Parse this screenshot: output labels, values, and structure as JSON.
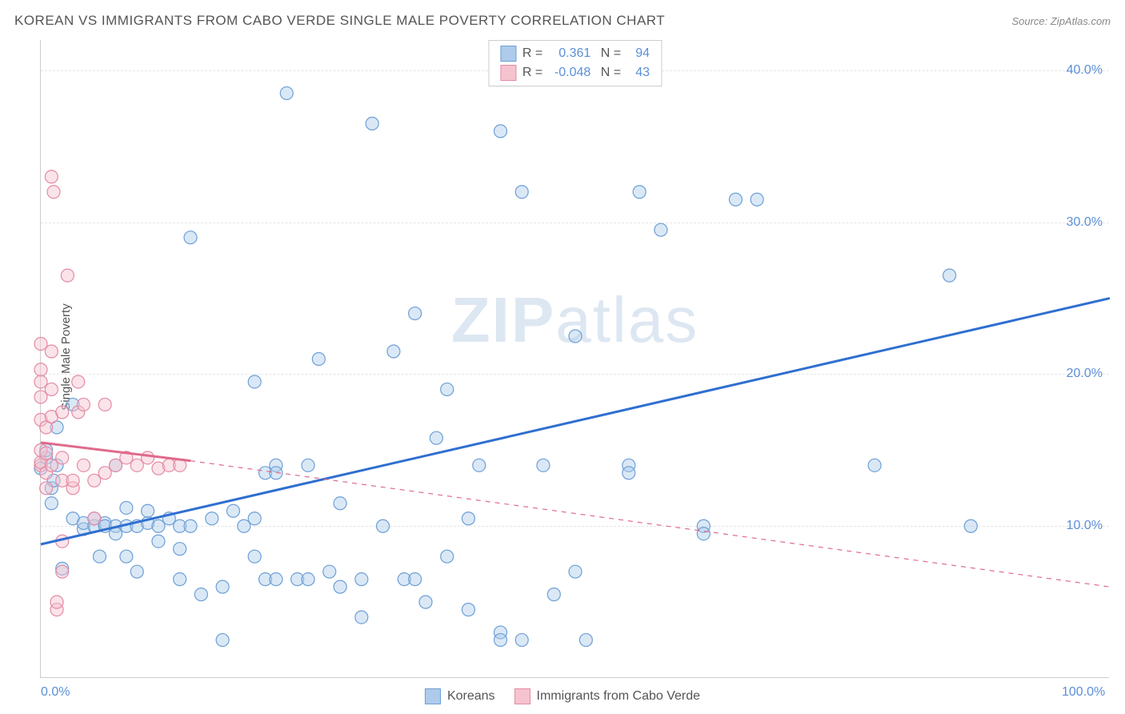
{
  "title": "KOREAN VS IMMIGRANTS FROM CABO VERDE SINGLE MALE POVERTY CORRELATION CHART",
  "source": "Source: ZipAtlas.com",
  "y_axis_title": "Single Male Poverty",
  "watermark_bold": "ZIP",
  "watermark_light": "atlas",
  "chart": {
    "type": "scatter",
    "xlim": [
      0,
      100
    ],
    "ylim": [
      0,
      42
    ],
    "x_ticks": [
      0,
      100
    ],
    "x_tick_labels": [
      "0.0%",
      "100.0%"
    ],
    "y_ticks": [
      10,
      20,
      30,
      40
    ],
    "y_tick_labels": [
      "10.0%",
      "20.0%",
      "30.0%",
      "40.0%"
    ],
    "grid_color": "#e5e5e5",
    "axis_color": "#cccccc",
    "background_color": "#ffffff",
    "tick_label_color": "#5b8fd6",
    "tick_label_fontsize": 16,
    "axis_title_fontsize": 15,
    "marker_radius": 8,
    "marker_stroke_width": 1.2,
    "marker_fill_opacity": 0.45,
    "trend_line_width_solid": 3,
    "trend_line_width_dash": 1.2
  },
  "series": [
    {
      "name": "Koreans",
      "color_fill": "#aecbeb",
      "color_stroke": "#6d9fd6",
      "trend_color": "#2f6fd0",
      "trend_style": "solid",
      "R": "0.361",
      "N": "94",
      "trend": {
        "x1": 0,
        "y1": 8.8,
        "x2": 100,
        "y2": 25.0
      },
      "extrapolation_dash": false,
      "points": [
        [
          0,
          13.8
        ],
        [
          0.5,
          14.5
        ],
        [
          0.5,
          15.0
        ],
        [
          1,
          11.5
        ],
        [
          1,
          12.5
        ],
        [
          1.2,
          13
        ],
        [
          1.5,
          14.0
        ],
        [
          1.5,
          16.5
        ],
        [
          2,
          7.2
        ],
        [
          3,
          18.0
        ],
        [
          3,
          10.5
        ],
        [
          4,
          9.8
        ],
        [
          4,
          10.2
        ],
        [
          5,
          10.0
        ],
        [
          5,
          10.5
        ],
        [
          5.5,
          8.0
        ],
        [
          6,
          10.2
        ],
        [
          6,
          10.0
        ],
        [
          7,
          10.0
        ],
        [
          7,
          9.5
        ],
        [
          7,
          14.0
        ],
        [
          8,
          11.2
        ],
        [
          8,
          8.0
        ],
        [
          8,
          10.0
        ],
        [
          9,
          10.0
        ],
        [
          9,
          7.0
        ],
        [
          10,
          10.2
        ],
        [
          10,
          11.0
        ],
        [
          11,
          9.0
        ],
        [
          11,
          10.0
        ],
        [
          12,
          10.5
        ],
        [
          13,
          10.0
        ],
        [
          13,
          8.5
        ],
        [
          13,
          6.5
        ],
        [
          14,
          29.0
        ],
        [
          14,
          10.0
        ],
        [
          15,
          5.5
        ],
        [
          16,
          10.5
        ],
        [
          17,
          6.0
        ],
        [
          17,
          2.5
        ],
        [
          18,
          11.0
        ],
        [
          19,
          10.0
        ],
        [
          20,
          19.5
        ],
        [
          20,
          10.5
        ],
        [
          20,
          8.0
        ],
        [
          21,
          13.5
        ],
        [
          21,
          6.5
        ],
        [
          22,
          14.0
        ],
        [
          22,
          6.5
        ],
        [
          22,
          13.5
        ],
        [
          23,
          38.5
        ],
        [
          24,
          6.5
        ],
        [
          25,
          6.5
        ],
        [
          25,
          14.0
        ],
        [
          26,
          21.0
        ],
        [
          27,
          7.0
        ],
        [
          28,
          11.5
        ],
        [
          28,
          6.0
        ],
        [
          30,
          4.0
        ],
        [
          30,
          6.5
        ],
        [
          31,
          36.5
        ],
        [
          32,
          10.0
        ],
        [
          33,
          21.5
        ],
        [
          34,
          6.5
        ],
        [
          35,
          24.0
        ],
        [
          35,
          6.5
        ],
        [
          36,
          5.0
        ],
        [
          37,
          15.8
        ],
        [
          38,
          19.0
        ],
        [
          38,
          8.0
        ],
        [
          40,
          10.5
        ],
        [
          40,
          4.5
        ],
        [
          41,
          14.0
        ],
        [
          43,
          36.0
        ],
        [
          43,
          3.0
        ],
        [
          43,
          2.5
        ],
        [
          45,
          2.5
        ],
        [
          45,
          32.0
        ],
        [
          47,
          14.0
        ],
        [
          48,
          5.5
        ],
        [
          50,
          22.5
        ],
        [
          50,
          7.0
        ],
        [
          51,
          2.5
        ],
        [
          55,
          14.0
        ],
        [
          55,
          13.5
        ],
        [
          56,
          32.0
        ],
        [
          58,
          29.5
        ],
        [
          62,
          10.0
        ],
        [
          62,
          9.5
        ],
        [
          65,
          31.5
        ],
        [
          67,
          31.5
        ],
        [
          78,
          14.0
        ],
        [
          85,
          26.5
        ],
        [
          87,
          10.0
        ]
      ]
    },
    {
      "name": "Immigrants from Cabo Verde",
      "color_fill": "#f5c3cf",
      "color_stroke": "#e48aa4",
      "trend_color": "#e06a8c",
      "trend_style": "solid-then-dash",
      "R": "-0.048",
      "N": "43",
      "trend_solid": {
        "x1": 0,
        "y1": 15.5,
        "x2": 14,
        "y2": 14.3
      },
      "trend_dash": {
        "x1": 14,
        "y1": 14.3,
        "x2": 100,
        "y2": 6.0
      },
      "points": [
        [
          0,
          14.0
        ],
        [
          0,
          14.2
        ],
        [
          0,
          15.0
        ],
        [
          0,
          17.0
        ],
        [
          0,
          18.5
        ],
        [
          0,
          19.5
        ],
        [
          0,
          20.3
        ],
        [
          0,
          22.0
        ],
        [
          0.5,
          12.5
        ],
        [
          0.5,
          13.5
        ],
        [
          0.5,
          14.8
        ],
        [
          0.5,
          16.5
        ],
        [
          1,
          14.0
        ],
        [
          1,
          17.2
        ],
        [
          1,
          19.0
        ],
        [
          1,
          21.5
        ],
        [
          1,
          33.0
        ],
        [
          1.2,
          32.0
        ],
        [
          1.5,
          4.5
        ],
        [
          1.5,
          5.0
        ],
        [
          2,
          7.0
        ],
        [
          2,
          9.0
        ],
        [
          2,
          13.0
        ],
        [
          2,
          14.5
        ],
        [
          2,
          17.5
        ],
        [
          2.5,
          26.5
        ],
        [
          3,
          12.5
        ],
        [
          3,
          13.0
        ],
        [
          3.5,
          19.5
        ],
        [
          3.5,
          17.5
        ],
        [
          4,
          14.0
        ],
        [
          4,
          18.0
        ],
        [
          5,
          10.5
        ],
        [
          5,
          13.0
        ],
        [
          6,
          13.5
        ],
        [
          6,
          18.0
        ],
        [
          7,
          14.0
        ],
        [
          8,
          14.5
        ],
        [
          9,
          14.0
        ],
        [
          10,
          14.5
        ],
        [
          11,
          13.8
        ],
        [
          12,
          14.0
        ],
        [
          13,
          14.0
        ]
      ]
    }
  ],
  "stats_box": {
    "rows": [
      {
        "swatch_fill": "#aecbeb",
        "swatch_stroke": "#6d9fd6",
        "r_label": "R =",
        "r_val": "0.361",
        "n_label": "N =",
        "n_val": "94"
      },
      {
        "swatch_fill": "#f5c3cf",
        "swatch_stroke": "#e48aa4",
        "r_label": "R =",
        "r_val": "-0.048",
        "n_label": "N =",
        "n_val": "43"
      }
    ]
  },
  "legend": [
    {
      "swatch_fill": "#aecbeb",
      "swatch_stroke": "#6d9fd6",
      "label": "Koreans"
    },
    {
      "swatch_fill": "#f5c3cf",
      "swatch_stroke": "#e48aa4",
      "label": "Immigrants from Cabo Verde"
    }
  ]
}
